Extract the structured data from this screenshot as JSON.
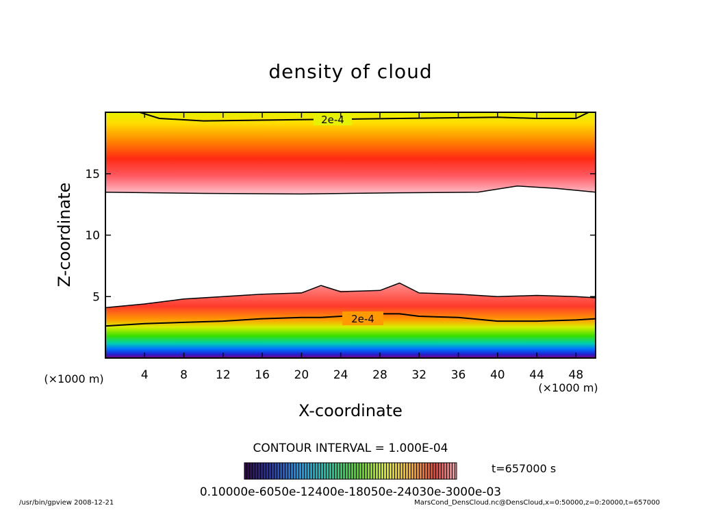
{
  "chart_data": {
    "type": "contour",
    "title": "density of cloud",
    "xlabel": "X-coordinate",
    "ylabel": "Z-coordinate",
    "x_unit": "(×1000 m)",
    "y_unit": "(×1000 m)",
    "xlim": [
      0,
      50
    ],
    "ylim": [
      0,
      20
    ],
    "x_ticks": [
      "4",
      "8",
      "12",
      "16",
      "20",
      "24",
      "28",
      "32",
      "36",
      "40",
      "44",
      "48"
    ],
    "y_ticks": [
      "5",
      "10",
      "15"
    ],
    "contour_labels": [
      "2e-4",
      "2e-4"
    ],
    "contour_interval_text": "CONTOUR INTERVAL = 1.000E-04",
    "colorbar_text": "0.10000e-6050e-12400e-18050e-24030e-3000e-03",
    "time_text": "t=657000 s",
    "upper_layer": {
      "bottom_z": 13.5,
      "peak_z": 15.5,
      "top_z": 20
    },
    "lower_layer": {
      "x": [
        0,
        4,
        8,
        12,
        16,
        20,
        22,
        24,
        28,
        30,
        32,
        36,
        40,
        44,
        48,
        50
      ],
      "top_z": [
        4.1,
        4.4,
        4.8,
        5.0,
        5.2,
        5.3,
        5.9,
        5.4,
        5.5,
        6.1,
        5.3,
        5.2,
        5.0,
        5.1,
        5.0,
        4.9
      ],
      "contour_2e4_z": [
        2.6,
        2.8,
        2.9,
        3.0,
        3.2,
        3.3,
        3.3,
        3.4,
        3.6,
        3.6,
        3.4,
        3.3,
        3.0,
        3.0,
        3.1,
        3.2
      ]
    }
  },
  "footer": {
    "left": "/usr/bin/gpview   2008-12-21",
    "right": "MarsCond_DensCloud.nc@DensCloud,x=0:50000,z=0:20000,t=657000"
  }
}
